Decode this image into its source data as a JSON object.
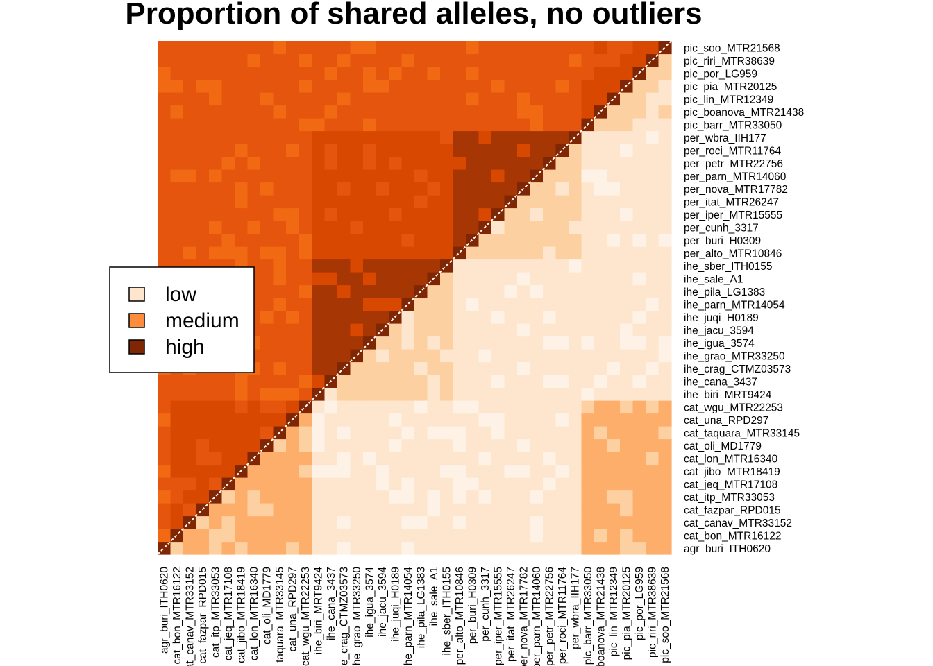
{
  "chart_data": {
    "type": "heatmap",
    "title": "Proportion of shared alleles, no outliers",
    "xlabel": "",
    "ylabel": "",
    "legend": {
      "placement": "left",
      "entries": [
        {
          "label": "low",
          "color": "#FEE6CE"
        },
        {
          "label": "medium",
          "color": "#FD8D3C"
        },
        {
          "label": "high",
          "color": "#7F2704"
        }
      ]
    },
    "color_scale": [
      "#FEF2E6",
      "#FEE6CE",
      "#FDD0A2",
      "#FDAE6B",
      "#FD8D3C",
      "#F16913",
      "#E6550D",
      "#D94801",
      "#A63603",
      "#7F2704"
    ],
    "samples": [
      "agr_buri_ITH0620",
      "cat_bon_MTR16122",
      "cat_canav_MTR33152",
      "cat_fazpar_RPD015",
      "cat_itp_MTR33053",
      "cat_jeq_MTR17108",
      "cat_jibo_MTR18419",
      "cat_lon_MTR16340",
      "cat_oli_MD1779",
      "cat_taquara_MTR33145",
      "cat_una_RPD297",
      "cat_wgu_MTR22253",
      "ihe_biri_MRT9424",
      "ihe_cana_3437",
      "ihe_crag_CTMZ03573",
      "ihe_grao_MTR33250",
      "ihe_igua_3574",
      "ihe_jacu_3594",
      "ihe_juqi_H0189",
      "ihe_parn_MTR14054",
      "ihe_pila_LG1383",
      "ihe_sale_A1",
      "ihe_sber_ITH0155",
      "per_alto_MTR10846",
      "per_buri_H0309",
      "per_cunh_3317",
      "per_iper_MTR15555",
      "per_itat_MTR26247",
      "per_nova_MTR17782",
      "per_parn_MTR14060",
      "per_petr_MTR22756",
      "per_roci_MTR11764",
      "per_wbra_IIH177",
      "pic_barr_MTR33050",
      "pic_boanova_MTR21438",
      "pic_lin_MTR12349",
      "pic_pia_MTR20125",
      "pic_por_LG959",
      "pic_riri_MTR38639",
      "pic_soo_MTR21568"
    ],
    "groups": [
      {
        "name": "agr",
        "start": 0,
        "end": 0
      },
      {
        "name": "cat",
        "start": 1,
        "end": 11
      },
      {
        "name": "ihe",
        "start": 12,
        "end": 22
      },
      {
        "name": "per",
        "start": 23,
        "end": 32
      },
      {
        "name": "pic",
        "start": 33,
        "end": 39
      }
    ],
    "upper_triangle_level": [
      [
        0,
        6,
        6,
        6,
        6
      ],
      [
        6,
        7,
        6,
        6,
        6
      ],
      [
        6,
        6,
        8,
        7,
        6
      ],
      [
        6,
        6,
        7,
        8,
        6
      ],
      [
        6,
        6,
        6,
        6,
        7
      ]
    ],
    "lower_triangle_level": [
      [
        0,
        3,
        1,
        1,
        3
      ],
      [
        3,
        3,
        1,
        1,
        3
      ],
      [
        1,
        1,
        2,
        1,
        1
      ],
      [
        1,
        1,
        1,
        2,
        1
      ],
      [
        3,
        3,
        1,
        1,
        2
      ]
    ],
    "diagonal_level": 9
  }
}
